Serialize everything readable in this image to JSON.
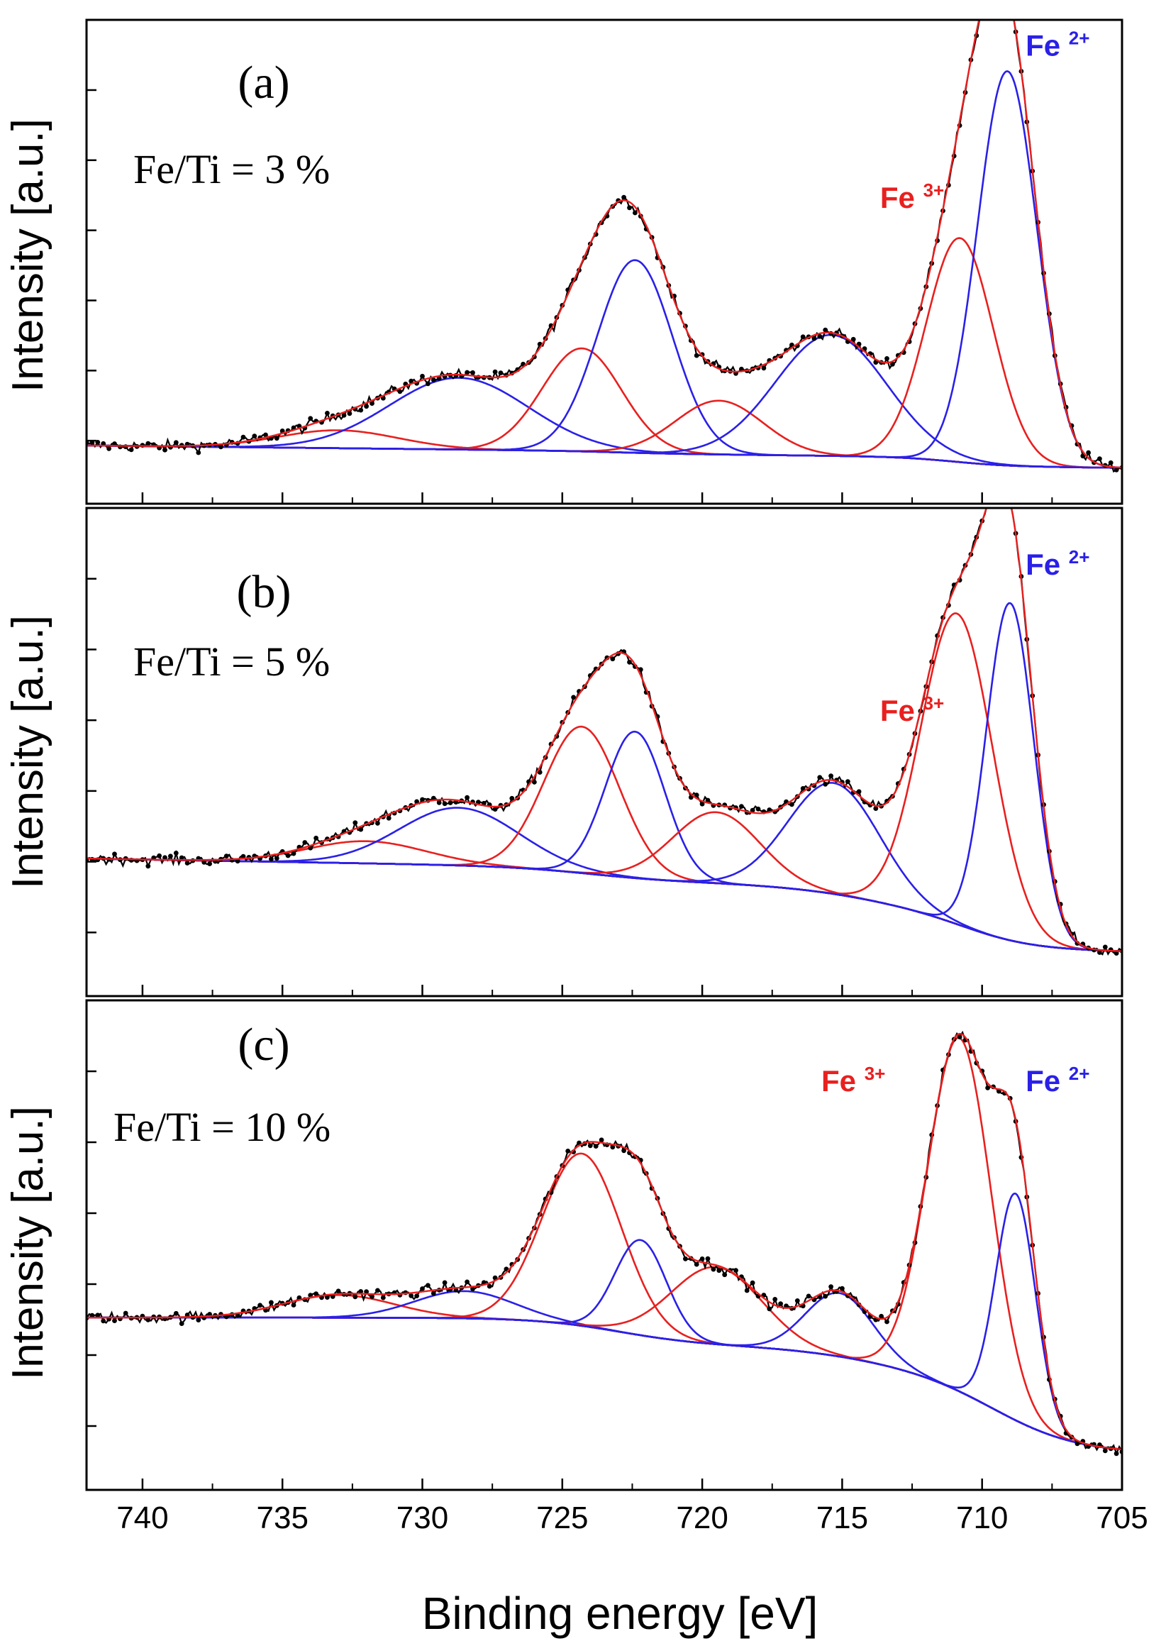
{
  "chart_data": [
    {
      "type": "line",
      "panel_label": "(a)",
      "annotation": "Fe/Ti = 3 %",
      "ylabel": "Intensity [a.u.]",
      "xlabel": "Binding energy [eV]",
      "xlim": [
        742,
        705
      ],
      "ylim": [
        -0.08,
        1.0
      ],
      "series_colors": {
        "data": "#000000",
        "envelope": "#e8201f",
        "fe3": "#e8201f",
        "fe2": "#2a20e8",
        "background": "#2a20e8"
      },
      "ion_labels": [
        {
          "ion": "Fe",
          "charge": "3+",
          "color": "#e8201f",
          "x": 712.5,
          "y": 0.58
        },
        {
          "ion": "Fe",
          "charge": "2+",
          "color": "#2a20e8",
          "x": 707.3,
          "y": 0.92
        }
      ],
      "background": {
        "start": 0.05,
        "end": 0.0,
        "steps": [
          {
            "c": 723,
            "h": 0.005,
            "w": 1.2
          },
          {
            "c": 711,
            "h": 0.02,
            "w": 1.0
          }
        ]
      },
      "peaks": [
        {
          "type": "fe3",
          "center": 733.0,
          "height": 0.04,
          "width": 3.0
        },
        {
          "type": "fe2",
          "center": 728.7,
          "height": 0.16,
          "width": 3.5
        },
        {
          "type": "fe3",
          "center": 724.3,
          "height": 0.23,
          "width": 2.0
        },
        {
          "type": "fe2",
          "center": 722.4,
          "height": 0.43,
          "width": 1.9
        },
        {
          "type": "fe3",
          "center": 719.4,
          "height": 0.12,
          "width": 2.2
        },
        {
          "type": "fe2",
          "center": 715.4,
          "height": 0.27,
          "width": 2.8
        },
        {
          "type": "fe3",
          "center": 710.8,
          "height": 0.5,
          "width": 1.7
        },
        {
          "type": "fe2",
          "center": 709.1,
          "height": 0.88,
          "width": 1.5
        }
      ],
      "noise": 0.012
    },
    {
      "type": "line",
      "panel_label": "(b)",
      "annotation": "Fe/Ti = 5 %",
      "ylabel": "Intensity [a.u.]",
      "xlim": [
        742,
        705
      ],
      "ylim": [
        -0.1,
        1.0
      ],
      "series_colors": {
        "data": "#000000",
        "envelope": "#e8201f",
        "fe3": "#e8201f",
        "fe2": "#2a20e8",
        "background": "#2a20e8"
      },
      "ion_labels": [
        {
          "ion": "Fe",
          "charge": "3+",
          "color": "#e8201f",
          "x": 712.5,
          "y": 0.52
        },
        {
          "ion": "Fe",
          "charge": "2+",
          "color": "#2a20e8",
          "x": 707.3,
          "y": 0.85
        }
      ],
      "background": {
        "start": 0.21,
        "end": 0.0,
        "steps": [
          {
            "c": 724,
            "h": 0.03,
            "w": 1.5
          },
          {
            "c": 714,
            "h": 0.06,
            "w": 1.8
          },
          {
            "c": 710.5,
            "h": 0.08,
            "w": 1.2
          }
        ]
      },
      "peaks": [
        {
          "type": "fe3",
          "center": 732.0,
          "height": 0.05,
          "width": 3.0
        },
        {
          "type": "fe2",
          "center": 728.7,
          "height": 0.13,
          "width": 3.0
        },
        {
          "type": "fe3",
          "center": 724.3,
          "height": 0.33,
          "width": 1.9
        },
        {
          "type": "fe2",
          "center": 722.4,
          "height": 0.33,
          "width": 1.5
        },
        {
          "type": "fe3",
          "center": 719.5,
          "height": 0.16,
          "width": 2.2
        },
        {
          "type": "fe2",
          "center": 715.3,
          "height": 0.25,
          "width": 2.3
        },
        {
          "type": "fe3",
          "center": 710.9,
          "height": 0.7,
          "width": 1.8
        },
        {
          "type": "fe2",
          "center": 709.0,
          "height": 0.76,
          "width": 1.2
        }
      ],
      "noise": 0.012
    },
    {
      "type": "line",
      "panel_label": "(c)",
      "annotation": "Fe/Ti = 10 %",
      "ylabel": "Intensity [a.u.]",
      "xlim": [
        742,
        705
      ],
      "ylim": [
        -0.08,
        1.0
      ],
      "series_colors": {
        "data": "#000000",
        "envelope": "#e8201f",
        "fe3": "#e8201f",
        "fe2": "#2a20e8",
        "background": "#2a20e8"
      },
      "ion_labels": [
        {
          "ion": "Fe",
          "charge": "3+",
          "color": "#e8201f",
          "x": 714.6,
          "y": 0.8
        },
        {
          "ion": "Fe",
          "charge": "2+",
          "color": "#2a20e8",
          "x": 707.3,
          "y": 0.8
        }
      ],
      "background": {
        "start": 0.3,
        "end": 0.0,
        "steps": [
          {
            "c": 723,
            "h": 0.06,
            "w": 1.5
          },
          {
            "c": 714,
            "h": 0.06,
            "w": 2.0
          },
          {
            "c": 709.5,
            "h": 0.18,
            "w": 1.5
          }
        ]
      },
      "peaks": [
        {
          "type": "fe3",
          "center": 733.0,
          "height": 0.05,
          "width": 2.8
        },
        {
          "type": "fe2",
          "center": 728.5,
          "height": 0.06,
          "width": 2.5
        },
        {
          "type": "fe3",
          "center": 724.3,
          "height": 0.38,
          "width": 2.0
        },
        {
          "type": "fe2",
          "center": 722.2,
          "height": 0.21,
          "width": 1.3
        },
        {
          "type": "fe3",
          "center": 719.5,
          "height": 0.17,
          "width": 2.3
        },
        {
          "type": "fe2",
          "center": 715.1,
          "height": 0.14,
          "width": 1.7
        },
        {
          "type": "fe3",
          "center": 710.8,
          "height": 0.78,
          "width": 1.6
        },
        {
          "type": "fe2",
          "center": 708.8,
          "height": 0.5,
          "width": 1.0
        }
      ],
      "noise": 0.012
    }
  ],
  "x_axis": {
    "label": "Binding energy [eV]",
    "tick_labels": [
      "740",
      "735",
      "730",
      "725",
      "720",
      "715",
      "710",
      "705"
    ],
    "tick_values": [
      740,
      735,
      730,
      725,
      720,
      715,
      710,
      705
    ]
  }
}
